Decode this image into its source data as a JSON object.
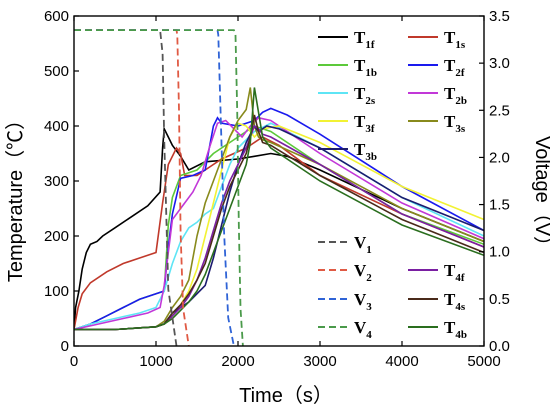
{
  "chart_data": {
    "type": "line",
    "xlabel": "Time（s）",
    "ylabel_left": "Temperature（℃）",
    "ylabel_right": "Voltage（V）",
    "xlim": [
      0,
      5000
    ],
    "ylim_left": [
      0,
      600
    ],
    "ylim_right": [
      0,
      3.5
    ],
    "xticks": [
      0,
      1000,
      2000,
      3000,
      4000,
      5000
    ],
    "yticks_left": [
      0,
      100,
      200,
      300,
      400,
      500,
      600
    ],
    "yticks_right": [
      0.0,
      0.5,
      1.0,
      1.5,
      2.0,
      2.5,
      3.0,
      3.5
    ],
    "grid": false,
    "legend_top": [
      {
        "base": "T",
        "sub": "1f",
        "color": "#000000"
      },
      {
        "base": "T",
        "sub": "1s",
        "color": "#c0392b"
      },
      {
        "base": "T",
        "sub": "1b",
        "color": "#5cc93a"
      },
      {
        "base": "T",
        "sub": "2f",
        "color": "#1a1aee"
      },
      {
        "base": "T",
        "sub": "2s",
        "color": "#5ee5f5"
      },
      {
        "base": "T",
        "sub": "2b",
        "color": "#c238d8"
      },
      {
        "base": "T",
        "sub": "3f",
        "color": "#f2f234"
      },
      {
        "base": "T",
        "sub": "3s",
        "color": "#888a1c"
      },
      {
        "base": "T",
        "sub": "3b",
        "color": "#1c1c70"
      }
    ],
    "legend_bottom": [
      {
        "base": "V",
        "sub": "1",
        "color": "#555555",
        "dashed": true
      },
      {
        "base": "V",
        "sub": "2",
        "color": "#e05a44",
        "dashed": true
      },
      {
        "base": "T",
        "sub": "4f",
        "color": "#7a1fa2"
      },
      {
        "base": "V",
        "sub": "3",
        "color": "#2f63d6",
        "dashed": true
      },
      {
        "base": "T",
        "sub": "4s",
        "color": "#4a2a1a"
      },
      {
        "base": "V",
        "sub": "4",
        "color": "#4a9a4a",
        "dashed": true
      },
      {
        "base": "T",
        "sub": "4b",
        "color": "#2a6e1e"
      }
    ],
    "voltage_series": [
      {
        "name": "V1",
        "color": "#555555",
        "axis": "right",
        "dashed": true,
        "x": [
          0,
          1000,
          1050,
          1080,
          1100,
          1150,
          1250
        ],
        "y": [
          3.35,
          3.35,
          3.35,
          3.1,
          2.2,
          0.6,
          0.0
        ]
      },
      {
        "name": "V2",
        "color": "#e05a44",
        "axis": "right",
        "dashed": true,
        "x": [
          0,
          1250,
          1260,
          1280,
          1300,
          1330,
          1400
        ],
        "y": [
          3.35,
          3.35,
          3.3,
          2.5,
          1.2,
          0.4,
          0.0
        ]
      },
      {
        "name": "V3",
        "color": "#2f63d6",
        "axis": "right",
        "dashed": true,
        "x": [
          0,
          1750,
          1760,
          1790,
          1830,
          1880,
          1950
        ],
        "y": [
          3.35,
          3.35,
          3.3,
          2.4,
          1.2,
          0.3,
          0.0
        ]
      },
      {
        "name": "V4",
        "color": "#4a9a4a",
        "axis": "right",
        "dashed": true,
        "x": [
          0,
          1950,
          1970,
          1990,
          2010,
          2030,
          2060
        ],
        "y": [
          3.35,
          3.35,
          3.3,
          2.5,
          1.3,
          0.4,
          0.0
        ]
      }
    ],
    "temperature_series": [
      {
        "name": "T1f",
        "color": "#000000",
        "x": [
          0,
          20,
          60,
          100,
          150,
          200,
          280,
          350,
          500,
          700,
          900,
          1050,
          1080,
          1100,
          1150,
          1200,
          1300,
          1400,
          1600,
          2000,
          2200,
          2400,
          2600,
          3000,
          4000,
          5000
        ],
        "y": [
          30,
          70,
          100,
          140,
          170,
          185,
          190,
          200,
          215,
          235,
          255,
          280,
          360,
          395,
          380,
          365,
          345,
          320,
          335,
          340,
          345,
          350,
          345,
          320,
          250,
          190
        ]
      },
      {
        "name": "T1s",
        "color": "#c0392b",
        "x": [
          0,
          50,
          100,
          200,
          400,
          600,
          800,
          1000,
          1080,
          1150,
          1250,
          1300,
          1350,
          1500,
          1800,
          2100,
          2300,
          2500,
          3000,
          4000,
          5000
        ],
        "y": [
          30,
          70,
          95,
          115,
          135,
          150,
          160,
          170,
          260,
          330,
          360,
          350,
          310,
          310,
          340,
          360,
          380,
          365,
          310,
          240,
          180
        ]
      },
      {
        "name": "T1b",
        "color": "#5cc93a",
        "x": [
          0,
          200,
          400,
          600,
          800,
          1000,
          1100,
          1150,
          1200,
          1300,
          1500,
          1700,
          1900,
          2000,
          2100,
          2200,
          2400,
          3000,
          4000,
          5000
        ],
        "y": [
          30,
          40,
          55,
          70,
          85,
          95,
          100,
          220,
          270,
          310,
          320,
          350,
          370,
          380,
          390,
          400,
          390,
          330,
          240,
          185
        ]
      },
      {
        "name": "T2f",
        "color": "#1a1aee",
        "x": [
          0,
          200,
          400,
          600,
          800,
          1000,
          1100,
          1150,
          1200,
          1300,
          1450,
          1600,
          1700,
          1750,
          1800,
          2000,
          2100,
          2200,
          2300,
          2400,
          2600,
          3000,
          4000,
          5000
        ],
        "y": [
          30,
          40,
          55,
          70,
          85,
          95,
          100,
          180,
          240,
          305,
          310,
          320,
          400,
          415,
          405,
          400,
          405,
          410,
          425,
          432,
          420,
          385,
          290,
          210
        ]
      },
      {
        "name": "T2s",
        "color": "#5ee5f5",
        "x": [
          0,
          200,
          500,
          800,
          1000,
          1100,
          1200,
          1300,
          1400,
          1500,
          1600,
          1700,
          1800,
          1900,
          2000,
          2200,
          2400,
          3000,
          4000,
          5000
        ],
        "y": [
          30,
          40,
          50,
          60,
          70,
          100,
          150,
          190,
          215,
          225,
          240,
          250,
          290,
          330,
          360,
          390,
          405,
          360,
          270,
          200
        ]
      },
      {
        "name": "T2b",
        "color": "#c238d8",
        "x": [
          0,
          300,
          600,
          900,
          1050,
          1100,
          1200,
          1300,
          1450,
          1550,
          1650,
          1750,
          1850,
          1950,
          2050,
          2150,
          2250,
          2400,
          3000,
          4000,
          5000
        ],
        "y": [
          30,
          40,
          50,
          60,
          70,
          110,
          230,
          250,
          280,
          310,
          360,
          405,
          410,
          395,
          380,
          400,
          415,
          410,
          350,
          260,
          195
        ]
      },
      {
        "name": "T3f",
        "color": "#f2f234",
        "x": [
          0,
          500,
          1000,
          1100,
          1200,
          1300,
          1400,
          1500,
          1600,
          1700,
          1800,
          1900,
          2000,
          2100,
          2200,
          2300,
          2500,
          3000,
          4000,
          5000
        ],
        "y": [
          30,
          30,
          35,
          40,
          55,
          75,
          100,
          140,
          200,
          260,
          320,
          380,
          405,
          400,
          380,
          395,
          400,
          370,
          290,
          230
        ]
      },
      {
        "name": "T3s",
        "color": "#888a1c",
        "x": [
          0,
          500,
          1000,
          1100,
          1200,
          1300,
          1400,
          1500,
          1600,
          1700,
          1800,
          1900,
          2000,
          2100,
          2150,
          2200,
          2250,
          2300,
          2400,
          3000,
          4000,
          5000
        ],
        "y": [
          30,
          30,
          35,
          45,
          70,
          90,
          120,
          200,
          260,
          300,
          340,
          380,
          410,
          430,
          470,
          400,
          380,
          375,
          370,
          330,
          250,
          190
        ]
      },
      {
        "name": "T3b",
        "color": "#1c1c70",
        "x": [
          0,
          500,
          1000,
          1100,
          1200,
          1400,
          1600,
          1700,
          1800,
          1900,
          2000,
          2100,
          2200,
          2250,
          2300,
          2350,
          2500,
          3000,
          4000,
          5000
        ],
        "y": [
          30,
          30,
          35,
          40,
          60,
          80,
          110,
          160,
          220,
          280,
          330,
          370,
          400,
          390,
          395,
          400,
          395,
          360,
          270,
          210
        ]
      },
      {
        "name": "T4f",
        "color": "#7a1fa2",
        "x": [
          0,
          500,
          1000,
          1100,
          1200,
          1300,
          1400,
          1500,
          1600,
          1700,
          1800,
          1900,
          2000,
          2100,
          2200,
          2250,
          2300,
          2400,
          3000,
          4000,
          5000
        ],
        "y": [
          30,
          30,
          35,
          40,
          55,
          70,
          90,
          120,
          160,
          210,
          260,
          300,
          330,
          360,
          400,
          395,
          385,
          380,
          330,
          240,
          180
        ]
      },
      {
        "name": "T4s",
        "color": "#4a2a1a",
        "x": [
          0,
          500,
          1000,
          1100,
          1200,
          1300,
          1400,
          1500,
          1600,
          1700,
          1800,
          1900,
          2000,
          2100,
          2150,
          2200,
          2250,
          2300,
          2400,
          3000,
          4000,
          5000
        ],
        "y": [
          30,
          30,
          35,
          40,
          60,
          75,
          95,
          120,
          150,
          200,
          250,
          290,
          320,
          350,
          380,
          420,
          390,
          370,
          365,
          310,
          230,
          170
        ]
      },
      {
        "name": "T4b",
        "color": "#2a6e1e",
        "x": [
          0,
          500,
          1000,
          1100,
          1200,
          1300,
          1400,
          1500,
          1600,
          1700,
          1800,
          1900,
          2000,
          2100,
          2150,
          2200,
          2300,
          2400,
          3000,
          4000,
          5000
        ],
        "y": [
          30,
          30,
          35,
          40,
          50,
          65,
          80,
          100,
          130,
          170,
          210,
          250,
          290,
          330,
          370,
          470,
          380,
          360,
          300,
          220,
          165
        ]
      }
    ]
  }
}
